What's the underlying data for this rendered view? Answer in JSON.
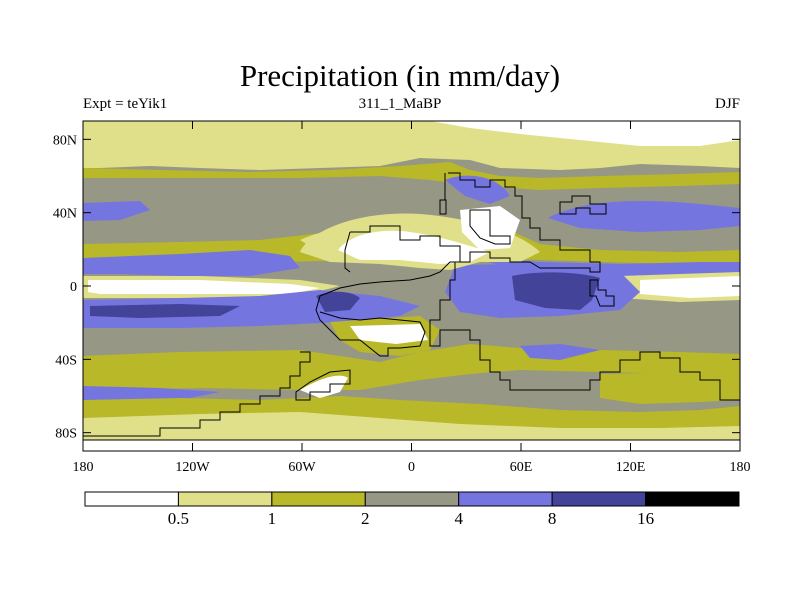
{
  "chart_data": {
    "type": "heatmap",
    "title": "Precipitation (in mm/day)",
    "subtitle_left": "Expt = teYik1",
    "subtitle_center": "311_1_MaBP",
    "subtitle_right": "DJF",
    "x_ticks": [
      "180",
      "120W",
      "60W",
      "0",
      "60E",
      "120E",
      "180"
    ],
    "y_ticks": [
      "80N",
      "40N",
      "0",
      "40S",
      "80S"
    ],
    "xlim": [
      -180,
      180
    ],
    "ylim": [
      -90,
      90
    ],
    "levels": [
      "0.5",
      "1",
      "2",
      "4",
      "8",
      "16"
    ],
    "level_colors": [
      "#ffffff",
      "#e1e08a",
      "#b8b828",
      "#979785",
      "#7575e0",
      "#43439a",
      "#000000"
    ]
  }
}
